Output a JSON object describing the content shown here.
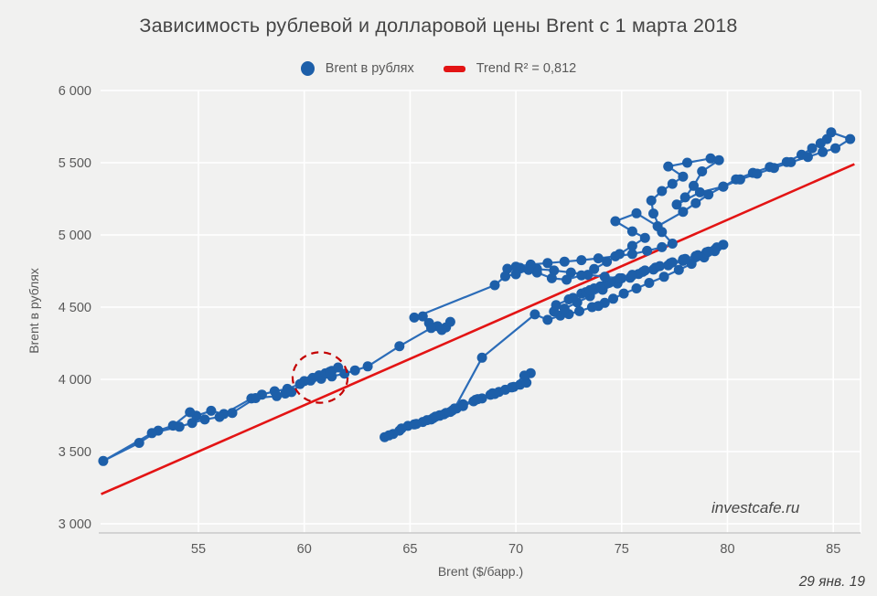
{
  "title": "Зависимость рублевой и долларовой цены Brent с 1 марта 2018",
  "legend": {
    "series_label": "Brent в рублях",
    "trend_label": "Trend R² = 0,812"
  },
  "watermark": "investcafe.ru",
  "date_label": "29 янв. 19",
  "colors": {
    "background": "#f1f1f0",
    "marker": "#1d5fa9",
    "line": "#2b6cb8",
    "trend": "#e31414",
    "grid": "#ffffff",
    "axis_line": "#c9c9c9",
    "text": "#595959",
    "annotation": "#c40000"
  },
  "chart_data": {
    "type": "scatter",
    "title": "Зависимость рублевой и долларовой цены Brent с 1 марта 2018",
    "xlabel": "Brent ($/барр.)",
    "ylabel": "Brent в рублях",
    "x_ticks": [
      55,
      60,
      65,
      70,
      75,
      80,
      85
    ],
    "y_ticks": [
      3000,
      3500,
      4000,
      4500,
      5000,
      5500,
      6000
    ],
    "y_tick_labels": [
      "3 000",
      "3 500",
      "4 000",
      "4 500",
      "5 000",
      "5 500",
      "6 000"
    ],
    "xlim": [
      50.4,
      86.3
    ],
    "ylim": [
      2940,
      6010
    ],
    "grid": true,
    "legend_position": "top",
    "connected": true,
    "series": [
      {
        "name": "Brent в рублях",
        "points": [
          [
            63.8,
            3600
          ],
          [
            64.2,
            3622
          ],
          [
            64.0,
            3612
          ],
          [
            64.5,
            3645
          ],
          [
            64.9,
            3678
          ],
          [
            64.6,
            3660
          ],
          [
            65.2,
            3688
          ],
          [
            65.6,
            3705
          ],
          [
            65.3,
            3692
          ],
          [
            66.0,
            3722
          ],
          [
            66.4,
            3748
          ],
          [
            66.1,
            3732
          ],
          [
            66.6,
            3758
          ],
          [
            67.0,
            3785
          ],
          [
            66.7,
            3768
          ],
          [
            67.2,
            3798
          ],
          [
            66.4,
            3752
          ],
          [
            65.8,
            3718
          ],
          [
            66.2,
            3742
          ],
          [
            66.9,
            3775
          ],
          [
            67.5,
            3815
          ],
          [
            68.0,
            3848
          ],
          [
            68.4,
            3868
          ],
          [
            68.1,
            3858
          ],
          [
            68.8,
            3893
          ],
          [
            69.2,
            3913
          ],
          [
            68.9,
            3903
          ],
          [
            69.5,
            3928
          ],
          [
            69.9,
            3948
          ],
          [
            70.2,
            3963
          ],
          [
            70.5,
            3977
          ],
          [
            70.7,
            4043
          ],
          [
            70.4,
            4026
          ],
          [
            69.8,
            3944
          ],
          [
            69.0,
            3899
          ],
          [
            68.2,
            3863
          ],
          [
            67.5,
            3828
          ],
          [
            67.1,
            3798
          ],
          [
            68.4,
            4150
          ],
          [
            70.9,
            4450
          ],
          [
            71.5,
            4412
          ],
          [
            72.1,
            4442
          ],
          [
            71.8,
            4470
          ],
          [
            72.5,
            4452
          ],
          [
            73.0,
            4472
          ],
          [
            73.6,
            4500
          ],
          [
            74.2,
            4530
          ],
          [
            73.9,
            4508
          ],
          [
            74.6,
            4558
          ],
          [
            75.1,
            4594
          ],
          [
            75.7,
            4630
          ],
          [
            76.3,
            4668
          ],
          [
            77.0,
            4710
          ],
          [
            77.7,
            4758
          ],
          [
            78.3,
            4800
          ],
          [
            78.9,
            4844
          ],
          [
            79.4,
            4888
          ],
          [
            79.8,
            4932
          ],
          [
            79.5,
            4914
          ],
          [
            79.0,
            4880
          ],
          [
            78.5,
            4854
          ],
          [
            77.9,
            4830
          ],
          [
            77.3,
            4804
          ],
          [
            76.6,
            4774
          ],
          [
            76.0,
            4744
          ],
          [
            75.4,
            4704
          ],
          [
            74.8,
            4664
          ],
          [
            74.1,
            4620
          ],
          [
            73.5,
            4576
          ],
          [
            72.9,
            4532
          ],
          [
            72.3,
            4490
          ],
          [
            71.9,
            4514
          ],
          [
            72.5,
            4554
          ],
          [
            73.1,
            4594
          ],
          [
            73.7,
            4630
          ],
          [
            74.3,
            4664
          ],
          [
            74.9,
            4694
          ],
          [
            75.5,
            4720
          ],
          [
            74.7,
            4680
          ],
          [
            74.0,
            4644
          ],
          [
            73.3,
            4604
          ],
          [
            72.7,
            4564
          ],
          [
            73.5,
            4618
          ],
          [
            74.4,
            4668
          ],
          [
            75.0,
            4700
          ],
          [
            75.8,
            4730
          ],
          [
            76.5,
            4760
          ],
          [
            77.2,
            4790
          ],
          [
            77.9,
            4820
          ],
          [
            78.5,
            4850
          ],
          [
            79.0,
            4874
          ],
          [
            79.4,
            4898
          ],
          [
            79.1,
            4884
          ],
          [
            78.6,
            4860
          ],
          [
            78.0,
            4834
          ],
          [
            77.4,
            4810
          ],
          [
            76.8,
            4784
          ],
          [
            76.1,
            4754
          ],
          [
            75.5,
            4724
          ],
          [
            74.9,
            4700
          ],
          [
            74.2,
            4710
          ],
          [
            73.4,
            4724
          ],
          [
            72.6,
            4740
          ],
          [
            71.8,
            4754
          ],
          [
            71.0,
            4764
          ],
          [
            70.2,
            4772
          ],
          [
            69.6,
            4766
          ],
          [
            70.0,
            4780
          ],
          [
            70.7,
            4795
          ],
          [
            71.5,
            4805
          ],
          [
            72.3,
            4815
          ],
          [
            73.1,
            4825
          ],
          [
            73.9,
            4838
          ],
          [
            74.7,
            4852
          ],
          [
            75.5,
            4868
          ],
          [
            76.2,
            4890
          ],
          [
            76.9,
            4915
          ],
          [
            77.4,
            4940
          ],
          [
            76.9,
            5020
          ],
          [
            76.5,
            5148
          ],
          [
            76.4,
            5238
          ],
          [
            76.9,
            5304
          ],
          [
            77.4,
            5354
          ],
          [
            77.9,
            5404
          ],
          [
            77.2,
            5474
          ],
          [
            78.1,
            5500
          ],
          [
            79.2,
            5530
          ],
          [
            79.6,
            5518
          ],
          [
            78.8,
            5440
          ],
          [
            78.4,
            5340
          ],
          [
            78.0,
            5260
          ],
          [
            77.6,
            5210
          ],
          [
            78.7,
            5295
          ],
          [
            79.8,
            5335
          ],
          [
            80.4,
            5385
          ],
          [
            81.2,
            5430
          ],
          [
            82.0,
            5470
          ],
          [
            82.8,
            5505
          ],
          [
            83.5,
            5555
          ],
          [
            84.0,
            5600
          ],
          [
            84.4,
            5634
          ],
          [
            84.7,
            5664
          ],
          [
            84.9,
            5710
          ],
          [
            85.8,
            5664
          ],
          [
            85.1,
            5600
          ],
          [
            84.5,
            5574
          ],
          [
            83.8,
            5540
          ],
          [
            83.0,
            5504
          ],
          [
            82.2,
            5464
          ],
          [
            81.4,
            5424
          ],
          [
            80.6,
            5384
          ],
          [
            79.8,
            5334
          ],
          [
            79.1,
            5280
          ],
          [
            78.5,
            5220
          ],
          [
            77.9,
            5160
          ],
          [
            76.7,
            5060
          ],
          [
            75.7,
            5150
          ],
          [
            74.7,
            5095
          ],
          [
            75.5,
            5025
          ],
          [
            76.1,
            4980
          ],
          [
            75.5,
            4924
          ],
          [
            74.9,
            4868
          ],
          [
            74.3,
            4814
          ],
          [
            73.7,
            4764
          ],
          [
            73.1,
            4720
          ],
          [
            72.4,
            4690
          ],
          [
            71.7,
            4700
          ],
          [
            71.0,
            4740
          ],
          [
            70.6,
            4758
          ],
          [
            70.0,
            4728
          ],
          [
            69.5,
            4714
          ],
          [
            69.0,
            4652
          ],
          [
            65.2,
            4428
          ],
          [
            65.6,
            4436
          ],
          [
            65.9,
            4390
          ],
          [
            66.3,
            4368
          ],
          [
            66.7,
            4360
          ],
          [
            66.9,
            4398
          ],
          [
            66.5,
            4342
          ],
          [
            66.0,
            4356
          ],
          [
            64.5,
            4230
          ],
          [
            63.0,
            4090
          ],
          [
            62.4,
            4062
          ],
          [
            61.9,
            4040
          ],
          [
            61.3,
            4020
          ],
          [
            60.8,
            4004
          ],
          [
            60.3,
            3992
          ],
          [
            59.8,
            3968
          ],
          [
            59.2,
            3934
          ],
          [
            58.6,
            3918
          ],
          [
            58.0,
            3894
          ],
          [
            57.5,
            3868
          ],
          [
            56.2,
            3760
          ],
          [
            55.6,
            3782
          ],
          [
            54.9,
            3748
          ],
          [
            54.6,
            3772
          ],
          [
            53.8,
            3680
          ],
          [
            53.1,
            3645
          ],
          [
            52.2,
            3560
          ],
          [
            50.5,
            3435
          ],
          [
            52.8,
            3628
          ],
          [
            54.1,
            3672
          ],
          [
            54.7,
            3698
          ],
          [
            55.3,
            3722
          ],
          [
            56.0,
            3740
          ],
          [
            56.6,
            3768
          ],
          [
            57.7,
            3870
          ],
          [
            58.7,
            3884
          ],
          [
            59.1,
            3902
          ],
          [
            59.4,
            3912
          ],
          [
            60.0,
            3988
          ],
          [
            60.4,
            4010
          ],
          [
            60.7,
            4028
          ],
          [
            61.0,
            4042
          ],
          [
            61.3,
            4058
          ],
          [
            61.6,
            4082
          ],
          [
            61.2,
            4052
          ]
        ]
      }
    ],
    "trend": {
      "label": "Trend R² = 0,812",
      "r_squared": "0,812",
      "x1": 50.4,
      "y1": 3205,
      "x2": 86.0,
      "y2": 5490
    },
    "annotation_circle": {
      "cx": 60.75,
      "cy": 4013,
      "rx_dollars": 1.3,
      "ry_rubles": 175
    }
  }
}
